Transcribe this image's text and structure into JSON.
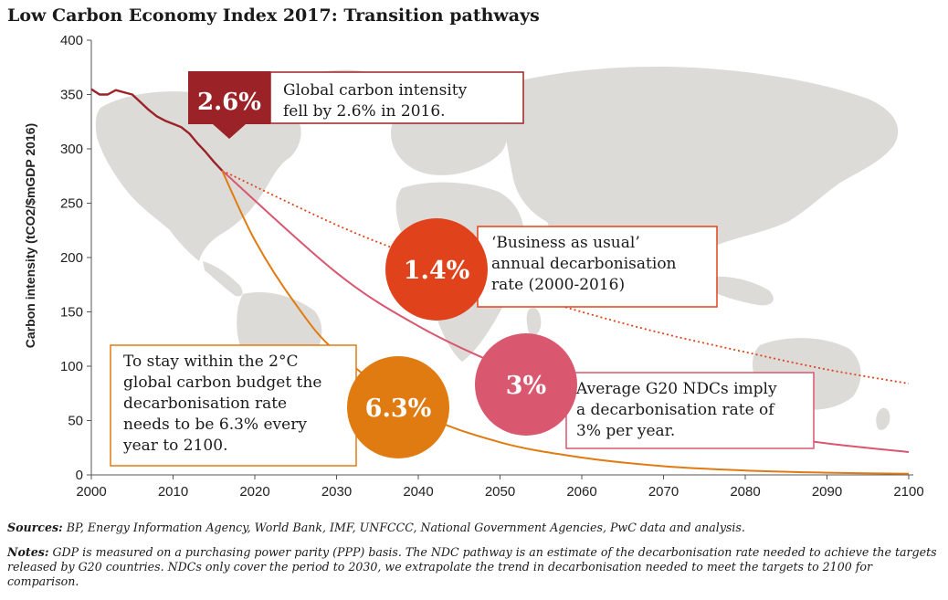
{
  "title": "Low Carbon Economy Index 2017: Transition pathways",
  "chart_data": {
    "type": "line",
    "title": "Low Carbon Economy Index 2017: Transition pathways",
    "xlabel": "",
    "ylabel": "Carbon intensity (tCO2/$mGDP 2016)",
    "xlim": [
      2000,
      2100
    ],
    "ylim": [
      0,
      400
    ],
    "xticks": [
      2000,
      2010,
      2020,
      2030,
      2040,
      2050,
      2060,
      2070,
      2080,
      2090,
      2100
    ],
    "yticks": [
      0,
      50,
      100,
      150,
      200,
      250,
      300,
      350,
      400
    ],
    "grid": false,
    "legend": "none",
    "colors": {
      "historical": "#9b2226",
      "business_as_usual": "#e0431c",
      "ndc": "#d9576f",
      "two_degree": "#e07b12",
      "map": "#dcdbd8"
    },
    "series": [
      {
        "key": "historical",
        "style": "solid",
        "x": [
          2000,
          2001,
          2002,
          2003,
          2004,
          2005,
          2006,
          2007,
          2008,
          2009,
          2010,
          2011,
          2012,
          2013,
          2014,
          2015,
          2016
        ],
        "y": [
          355,
          350,
          350,
          354,
          352,
          350,
          343,
          336,
          330,
          326,
          323,
          320,
          314,
          305,
          297,
          288,
          280
        ]
      },
      {
        "key": "business_as_usual",
        "style": "dotted",
        "x": [
          2016,
          2030,
          2040,
          2050,
          2060,
          2070,
          2080,
          2090,
          2100
        ],
        "y": [
          280,
          230,
          200,
          173,
          150,
          130,
          113,
          97,
          84
        ]
      },
      {
        "key": "ndc",
        "style": "solid",
        "x": [
          2016,
          2030,
          2040,
          2050,
          2060,
          2070,
          2080,
          2090,
          2100
        ],
        "y": [
          280,
          186,
          137,
          101,
          74,
          54,
          40,
          29,
          21
        ]
      },
      {
        "key": "two_degree",
        "style": "solid",
        "x": [
          2016,
          2020,
          2025,
          2030,
          2040,
          2050,
          2060,
          2070,
          2080,
          2090,
          2100
        ],
        "y": [
          280,
          216,
          157,
          113,
          58,
          30,
          16,
          8,
          4,
          2,
          1
        ]
      }
    ],
    "annotations": [
      {
        "key": "historical",
        "badge": "2.6%",
        "text": [
          "Global carbon intensity",
          "fell by 2.6% in 2016."
        ]
      },
      {
        "key": "business_as_usual",
        "badge": "1.4%",
        "text": [
          "‘Business as usual’",
          "annual decarbonisation",
          "rate (2000-2016)"
        ]
      },
      {
        "key": "ndc",
        "badge": "3%",
        "text": [
          "Average G20 NDCs imply",
          "a decarbonisation rate of",
          "3% per year."
        ]
      },
      {
        "key": "two_degree",
        "badge": "6.3%",
        "text": [
          "To stay within the 2°C",
          "global carbon budget the",
          "decarbonisation rate",
          "needs to be 6.3% every",
          "year to 2100."
        ]
      }
    ]
  },
  "footnotes": {
    "sources_label": "Sources:",
    "sources_text": "BP, Energy Information Agency, World Bank, IMF, UNFCCC, National Government Agencies, PwC data and analysis.",
    "notes_label": "Notes:",
    "notes_text": "GDP is measured on a purchasing power parity (PPP) basis. The NDC pathway is an estimate of the decarbonisation rate needed to achieve the targets released by G20 countries. NDCs only cover the period to 2030, we extrapolate the trend in decarbonisation needed to meet the targets to 2100 for comparison."
  }
}
